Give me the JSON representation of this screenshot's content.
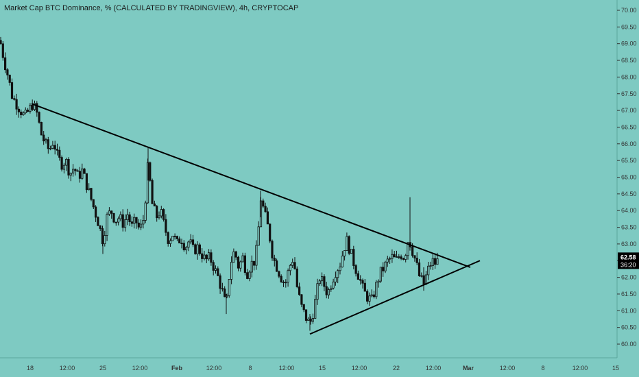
{
  "header": {
    "title": "Market Cap BTC Dominance, % (CALCULATED BY TRADINGVIEW), 4h, CRYPTOCAP"
  },
  "colors": {
    "background": "#7ecac2",
    "candle": "#111111",
    "trendline": "#000000",
    "price_label_bg": "#000000",
    "price_label_text": "#ffffff"
  },
  "chart_data": {
    "type": "candlestick",
    "title": "Market Cap BTC Dominance, % (CALCULATED BY TRADINGVIEW), 4h, CRYPTOCAP",
    "ylim": [
      59.6,
      70.3
    ],
    "y_ticks": [
      "70.00",
      "69.50",
      "69.00",
      "68.50",
      "68.00",
      "67.50",
      "67.00",
      "66.50",
      "66.00",
      "65.50",
      "65.00",
      "64.50",
      "64.00",
      "63.50",
      "63.00",
      "62.50",
      "62.00",
      "61.50",
      "61.00",
      "60.50",
      "60.00"
    ],
    "x_tick_labels": [
      "18",
      "12:00",
      "25",
      "12:00",
      "Feb",
      "12:00",
      "8",
      "12:00",
      "15",
      "12:00",
      "22",
      "12:00",
      "Mar",
      "12:00",
      "8",
      "12:00",
      "15"
    ],
    "last_price": "62.58",
    "countdown": "36:20",
    "close_path": [
      [
        0,
        69.1
      ],
      [
        6,
        68.5
      ],
      [
        12,
        68.0
      ],
      [
        18,
        67.4
      ],
      [
        24,
        67.2
      ],
      [
        30,
        67.0
      ],
      [
        36,
        66.8
      ],
      [
        42,
        67.0
      ],
      [
        48,
        67.2
      ],
      [
        54,
        66.9
      ],
      [
        60,
        66.3
      ],
      [
        66,
        66.0
      ],
      [
        72,
        65.8
      ],
      [
        78,
        66.1
      ],
      [
        84,
        65.6
      ],
      [
        90,
        65.4
      ],
      [
        96,
        65.5
      ],
      [
        102,
        65.1
      ],
      [
        108,
        65.3
      ],
      [
        114,
        65.0
      ],
      [
        120,
        65.2
      ],
      [
        126,
        64.8
      ],
      [
        132,
        64.4
      ],
      [
        138,
        64.0
      ],
      [
        144,
        63.6
      ],
      [
        150,
        63.1
      ],
      [
        156,
        63.8
      ],
      [
        162,
        64.0
      ],
      [
        168,
        63.7
      ],
      [
        174,
        63.8
      ],
      [
        180,
        63.6
      ],
      [
        186,
        63.9
      ],
      [
        192,
        63.5
      ],
      [
        198,
        63.7
      ],
      [
        204,
        63.4
      ],
      [
        210,
        63.8
      ],
      [
        216,
        65.4
      ],
      [
        222,
        64.2
      ],
      [
        228,
        63.8
      ],
      [
        234,
        64.0
      ],
      [
        240,
        63.5
      ],
      [
        246,
        63.1
      ],
      [
        252,
        63.3
      ],
      [
        258,
        63.0
      ],
      [
        264,
        63.2
      ],
      [
        270,
        62.9
      ],
      [
        276,
        63.1
      ],
      [
        282,
        62.8
      ],
      [
        288,
        62.9
      ],
      [
        294,
        62.7
      ],
      [
        300,
        62.5
      ],
      [
        306,
        62.6
      ],
      [
        312,
        62.3
      ],
      [
        318,
        62.0
      ],
      [
        324,
        61.6
      ],
      [
        330,
        61.1
      ],
      [
        336,
        62.4
      ],
      [
        342,
        62.8
      ],
      [
        348,
        62.3
      ],
      [
        354,
        62.6
      ],
      [
        360,
        62.1
      ],
      [
        366,
        62.4
      ],
      [
        372,
        62.5
      ],
      [
        376,
        63.1
      ],
      [
        380,
        64.4
      ],
      [
        386,
        63.9
      ],
      [
        392,
        63.4
      ],
      [
        398,
        62.6
      ],
      [
        404,
        62.3
      ],
      [
        410,
        62.0
      ],
      [
        416,
        61.8
      ],
      [
        422,
        62.3
      ],
      [
        428,
        62.6
      ],
      [
        434,
        61.6
      ],
      [
        440,
        61.1
      ],
      [
        446,
        60.8
      ],
      [
        452,
        60.6
      ],
      [
        456,
        60.9
      ],
      [
        460,
        61.3
      ],
      [
        466,
        62.0
      ],
      [
        472,
        61.8
      ],
      [
        478,
        61.5
      ],
      [
        484,
        61.9
      ],
      [
        490,
        62.2
      ],
      [
        496,
        62.4
      ],
      [
        502,
        62.9
      ],
      [
        506,
        63.1
      ],
      [
        512,
        62.7
      ],
      [
        518,
        62.3
      ],
      [
        524,
        62.0
      ],
      [
        530,
        61.6
      ],
      [
        536,
        61.4
      ],
      [
        542,
        61.3
      ],
      [
        548,
        61.7
      ],
      [
        554,
        62.1
      ],
      [
        560,
        62.3
      ],
      [
        566,
        62.5
      ],
      [
        572,
        62.6
      ],
      [
        578,
        62.5
      ],
      [
        584,
        62.7
      ],
      [
        590,
        62.6
      ],
      [
        596,
        63.2
      ],
      [
        600,
        62.9
      ],
      [
        606,
        62.5
      ],
      [
        612,
        62.0
      ],
      [
        618,
        61.8
      ],
      [
        624,
        62.2
      ],
      [
        630,
        62.5
      ],
      [
        636,
        62.4
      ],
      [
        640,
        62.58
      ]
    ],
    "wicks": [
      {
        "x": 216,
        "high": 65.9,
        "low": 64.9
      },
      {
        "x": 150,
        "high": 63.4,
        "low": 62.7
      },
      {
        "x": 380,
        "high": 64.6,
        "low": 63.8
      },
      {
        "x": 330,
        "high": 61.5,
        "low": 60.9
      },
      {
        "x": 452,
        "high": 60.9,
        "low": 60.4
      },
      {
        "x": 598,
        "high": 64.4,
        "low": 62.8
      },
      {
        "x": 618,
        "high": 62.3,
        "low": 61.6
      }
    ],
    "trendlines": [
      {
        "name": "upper",
        "from": [
          46,
          67.2
        ],
        "to": [
          686,
          62.3
        ]
      },
      {
        "name": "lower",
        "from": [
          452,
          60.3
        ],
        "to": [
          700,
          62.5
        ]
      }
    ],
    "x_tick_positions": [
      44,
      98,
      150,
      204,
      258,
      312,
      365,
      418,
      470,
      524,
      578,
      632,
      683,
      740,
      792,
      846,
      898
    ]
  }
}
